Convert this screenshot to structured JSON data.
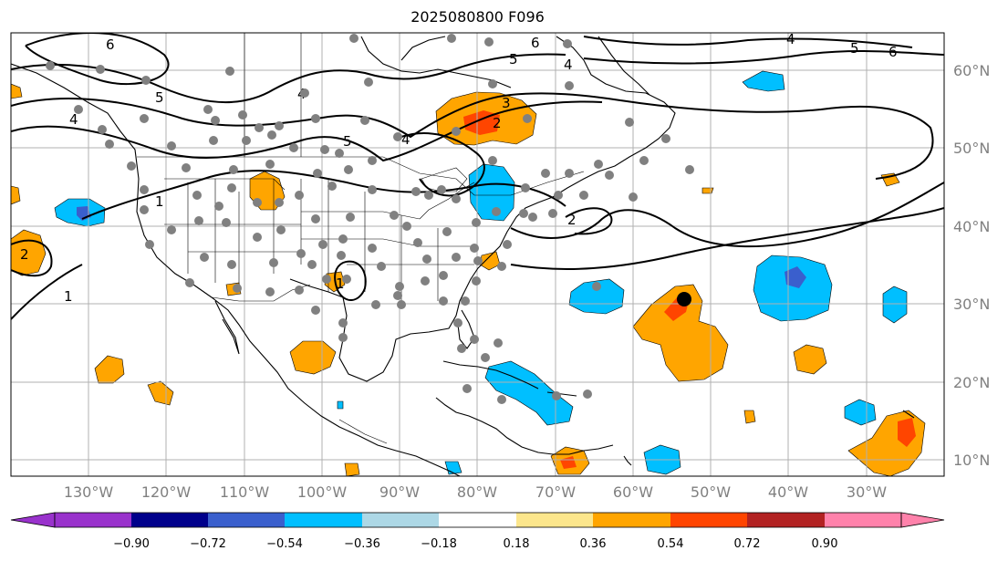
{
  "title": "2025080800 F096",
  "latitude_labels": [
    "60°N",
    "50°N",
    "40°N",
    "30°N",
    "20°N",
    "10°N"
  ],
  "longitude_labels": [
    "130°W",
    "120°W",
    "110°W",
    "100°W",
    "90°W",
    "80°W",
    "70°W",
    "60°W",
    "50°W",
    "40°W",
    "30°W"
  ],
  "colorbar": {
    "tick_labels": [
      "−0.90",
      "−0.72",
      "−0.54",
      "−0.36",
      "−0.18",
      "0.18",
      "0.36",
      "0.54",
      "0.72",
      "0.90"
    ],
    "colors": [
      "#9932cc",
      "#00008b",
      "#3a5fcd",
      "#00bfff",
      "#add8e6",
      "#ffffff",
      "#fce68c",
      "#ffa500",
      "#ff4500",
      "#b22222",
      "#ff82ab"
    ]
  },
  "contour_labels": [
    "6",
    "5",
    "6",
    "5",
    "4",
    "3",
    "2",
    "4",
    "5",
    "6",
    "4",
    "5",
    "4",
    "4",
    "1",
    "2",
    "2",
    "1",
    "1"
  ],
  "marker": {
    "type": "storm-center",
    "lon": -53,
    "lat": 30.5
  }
}
